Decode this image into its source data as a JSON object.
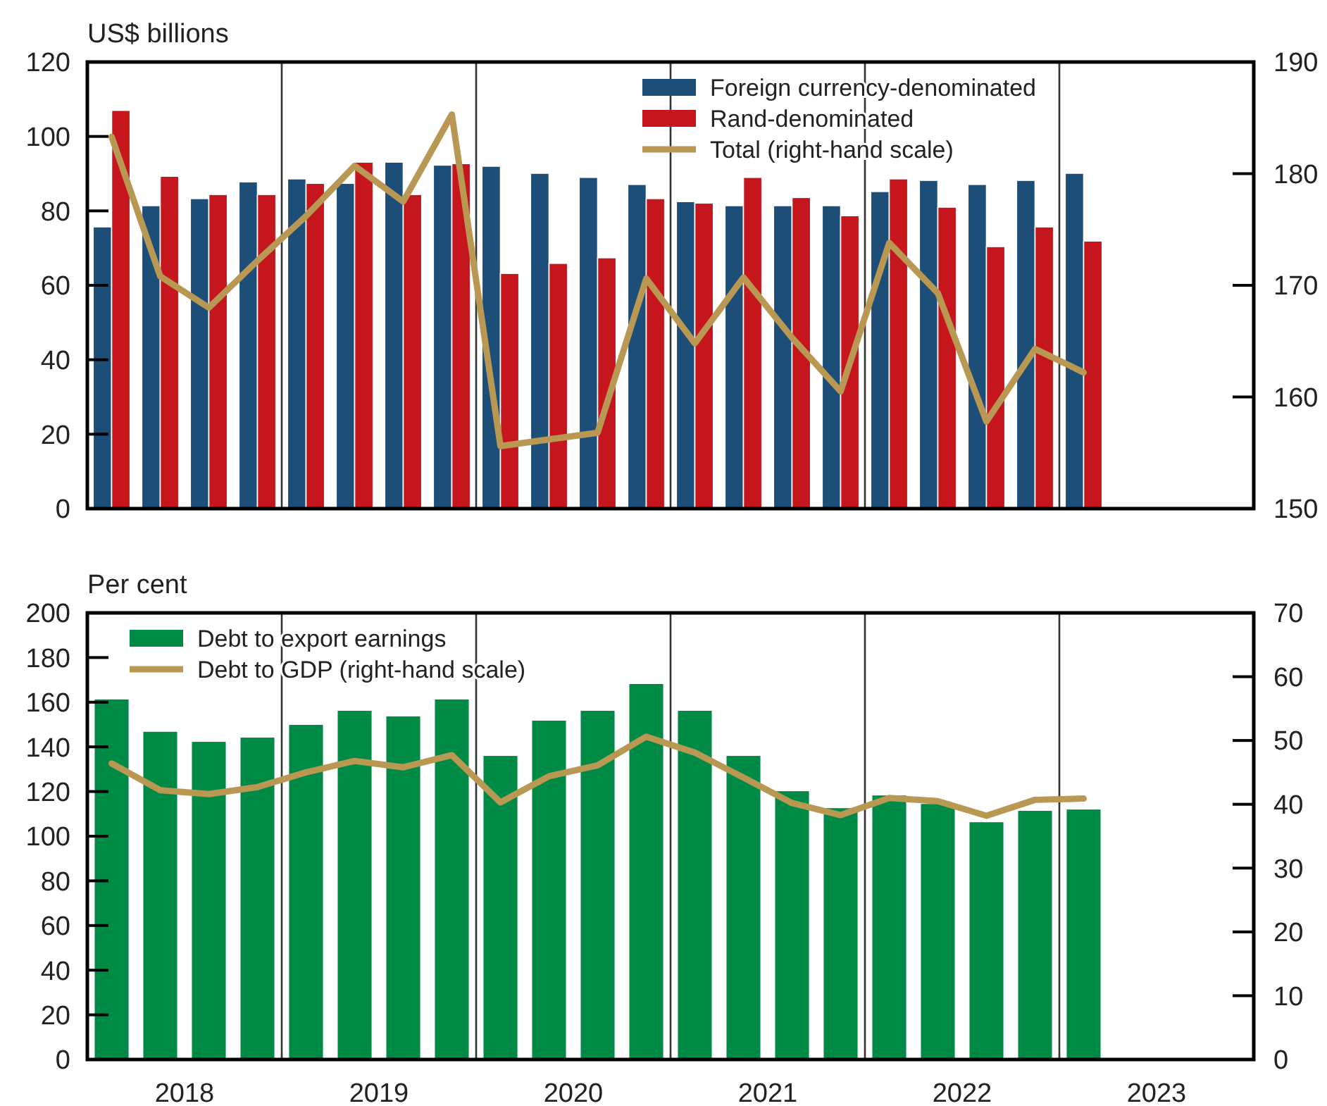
{
  "chart_data": [
    {
      "type": "bar",
      "ylabel": "US$ billions",
      "x": [
        2018.125,
        2018.375,
        2018.625,
        2018.875,
        2019.125,
        2019.375,
        2019.625,
        2019.875,
        2020.125,
        2020.375,
        2020.625,
        2020.875,
        2021.125,
        2021.375,
        2021.625,
        2021.875,
        2022.125,
        2022.375,
        2022.625,
        2022.875,
        2023.125
      ],
      "xlim": [
        2018,
        2024
      ],
      "tick_labels": "y",
      "ylim": [
        0,
        120
      ],
      "yticks": [
        0,
        20,
        40,
        60,
        80,
        100,
        120
      ],
      "y2lim": [
        150,
        190
      ],
      "y2ticks": [
        150,
        160,
        170,
        180,
        190
      ],
      "legend": "top",
      "ref_lines": [
        {
          "axis": "x",
          "value": 2019,
          "color": "#333333"
        },
        {
          "axis": "x",
          "value": 2020,
          "color": "#333333"
        },
        {
          "axis": "x",
          "value": 2021,
          "color": "#333333"
        },
        {
          "axis": "x",
          "value": 2022,
          "color": "#333333"
        },
        {
          "axis": "x",
          "value": 2023,
          "color": "#333333"
        }
      ],
      "series": [
        {
          "name": "Foreign currency-denominated",
          "color": "#1d4e77",
          "values": [
            75.7,
            81.4,
            83.3,
            87.8,
            88.6,
            87.4,
            93.1,
            92.3,
            92,
            90.1,
            89,
            87.1,
            82.5,
            81.4,
            81.4,
            81.4,
            85.2,
            88.2,
            87.1,
            88.2,
            90.1
          ]
        },
        {
          "name": "Rand-denominated",
          "color": "#c4161c",
          "values": [
            107,
            89.3,
            84.4,
            84.4,
            87.4,
            93.1,
            84.4,
            92.7,
            63.2,
            65.9,
            67.4,
            83.3,
            82.1,
            89,
            83.6,
            78.7,
            88.6,
            81,
            70.4,
            75.7,
            71.9
          ]
        },
        {
          "name": "Total (right-hand scale)",
          "type": "line",
          "axis": "y2",
          "color": "#b99853",
          "values": [
            183.3,
            170.8,
            168,
            172.2,
            176.2,
            180.7,
            177.5,
            185.3,
            155.6,
            156.2,
            156.8,
            170.6,
            164.8,
            170.7,
            165.3,
            160.5,
            173.8,
            169.3,
            157.8,
            164.3,
            162.2
          ]
        }
      ]
    },
    {
      "type": "bar",
      "ylabel": "Per cent",
      "x": [
        2018.125,
        2018.375,
        2018.625,
        2018.875,
        2019.125,
        2019.375,
        2019.625,
        2019.875,
        2020.125,
        2020.375,
        2020.625,
        2020.875,
        2021.125,
        2021.375,
        2021.625,
        2021.875,
        2022.125,
        2022.375,
        2022.625,
        2022.875,
        2023.125
      ],
      "xlim": [
        2018,
        2024
      ],
      "xticks": [
        {
          "value": 2018.5,
          "label": "2018"
        },
        {
          "value": 2019.5,
          "label": "2019"
        },
        {
          "value": 2020.5,
          "label": "2020"
        },
        {
          "value": 2021.5,
          "label": "2021"
        },
        {
          "value": 2022.5,
          "label": "2022"
        },
        {
          "value": 2023.5,
          "label": "2023"
        }
      ],
      "ylim": [
        0,
        200
      ],
      "yticks": [
        0,
        20,
        40,
        60,
        80,
        100,
        120,
        140,
        160,
        180,
        200
      ],
      "y2lim": [
        0,
        70
      ],
      "y2ticks": [
        0,
        10,
        20,
        30,
        40,
        50,
        60,
        70
      ],
      "legend": "top left",
      "ref_lines": [
        {
          "axis": "x",
          "value": 2019,
          "color": "#333333"
        },
        {
          "axis": "x",
          "value": 2020,
          "color": "#333333"
        },
        {
          "axis": "x",
          "value": 2021,
          "color": "#333333"
        },
        {
          "axis": "x",
          "value": 2022,
          "color": "#333333"
        },
        {
          "axis": "x",
          "value": 2023,
          "color": "#333333"
        }
      ],
      "series": [
        {
          "name": "Debt to export earnings",
          "color": "#008a45",
          "values": [
            161.5,
            147,
            142.5,
            144.4,
            150.1,
            156.4,
            153.9,
            161.5,
            136.2,
            152,
            156.4,
            168.4,
            156.4,
            136.2,
            120.4,
            112.8,
            118.5,
            114.7,
            106.5,
            111.6,
            112.2
          ]
        },
        {
          "name": "Debt to GDP (right-hand scale)",
          "type": "line",
          "axis": "y2",
          "color": "#b99853",
          "values": [
            46.4,
            42.2,
            41.6,
            42.7,
            45,
            46.8,
            45.8,
            47.7,
            40.3,
            44.4,
            46.1,
            50.6,
            48.1,
            44.2,
            40.2,
            38.3,
            41,
            40.5,
            38.2,
            40.7,
            40.9
          ]
        }
      ]
    }
  ]
}
